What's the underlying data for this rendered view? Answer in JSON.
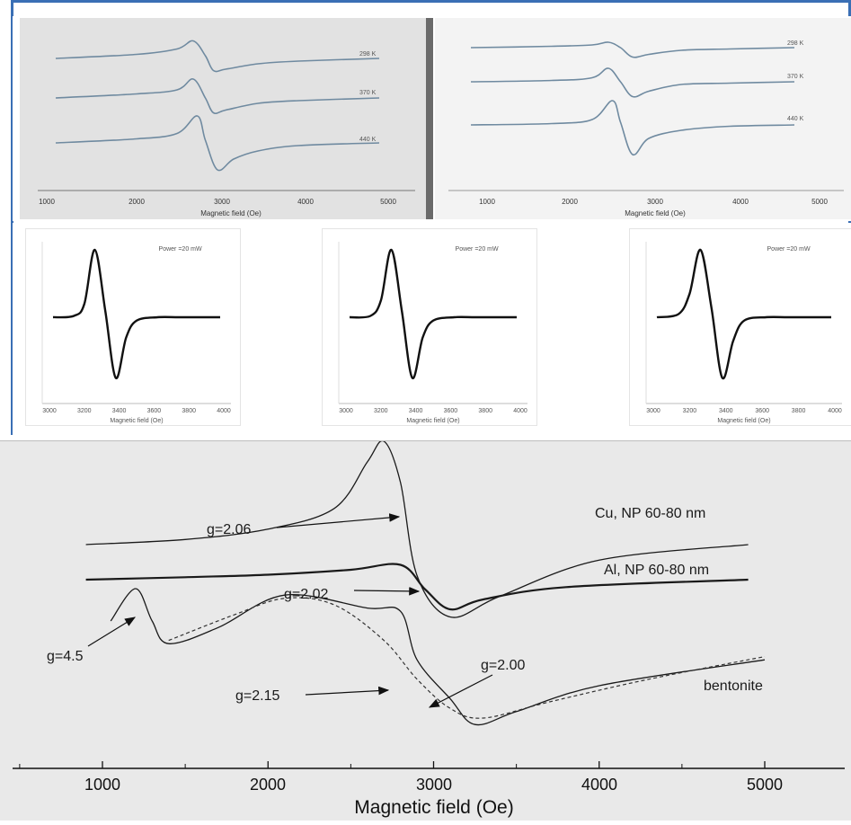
{
  "chart_data": [
    {
      "type": "line",
      "xlabel": "Magnetic field (Oe)",
      "xlim": [
        900,
        5100
      ],
      "x_ticks": [
        "1000",
        "2000",
        "3000",
        "4000",
        "5000"
      ],
      "series": [
        {
          "name": "298 K",
          "x": [
            1000,
            2000,
            2500,
            2700,
            2850,
            2950,
            3100,
            3500,
            4000,
            5000
          ],
          "y": [
            0.1,
            0.25,
            0.45,
            0.75,
            0.2,
            -0.35,
            -0.3,
            -0.1,
            0.0,
            0.1
          ]
        },
        {
          "name": "370 K",
          "x": [
            1000,
            2000,
            2500,
            2700,
            2850,
            2950,
            3100,
            3500,
            4000,
            5000
          ],
          "y": [
            0.1,
            0.25,
            0.4,
            0.8,
            0.1,
            -0.45,
            -0.35,
            -0.1,
            0.0,
            0.1
          ]
        },
        {
          "name": "440 K",
          "x": [
            1000,
            2000,
            2500,
            2750,
            2850,
            3000,
            3200,
            3500,
            4000,
            5000
          ],
          "y": [
            0.1,
            0.25,
            0.45,
            1.1,
            0.2,
            -0.9,
            -0.5,
            -0.2,
            0.0,
            0.1
          ]
        }
      ]
    },
    {
      "type": "line",
      "xlabel": "Magnetic field (Oe)",
      "xlim": [
        900,
        5100
      ],
      "x_ticks": [
        "1000",
        "2000",
        "3000",
        "4000",
        "5000"
      ],
      "series": [
        {
          "name": "298 K",
          "x": [
            1000,
            2000,
            2500,
            2700,
            2850,
            3000,
            3200,
            3600,
            4200,
            5000
          ],
          "y": [
            0.1,
            0.15,
            0.2,
            0.3,
            0.1,
            -0.25,
            -0.15,
            0.0,
            0.05,
            0.1
          ]
        },
        {
          "name": "370 K",
          "x": [
            1000,
            2000,
            2500,
            2700,
            2850,
            3000,
            3200,
            3600,
            4200,
            5000
          ],
          "y": [
            0.1,
            0.15,
            0.25,
            0.6,
            0.1,
            -0.45,
            -0.25,
            0.0,
            0.05,
            0.1
          ]
        },
        {
          "name": "440 K",
          "x": [
            1000,
            2000,
            2500,
            2750,
            2850,
            3000,
            3200,
            3600,
            4200,
            5000
          ],
          "y": [
            0.1,
            0.15,
            0.3,
            1.0,
            0.2,
            -1.0,
            -0.4,
            -0.1,
            0.05,
            0.1
          ]
        }
      ]
    },
    {
      "type": "line",
      "title": "Power =20 mW",
      "xlabel": "Magnetic field (Oe)",
      "series": [
        {
          "x": [
            3000,
            3100,
            3150,
            3200,
            3250,
            3300,
            3350,
            3400,
            3500,
            3600,
            3700,
            3800
          ],
          "y": [
            0.0,
            0.02,
            0.2,
            1.0,
            0.1,
            -0.9,
            -0.3,
            -0.05,
            0.0,
            0.0,
            0.0,
            0.0
          ]
        }
      ]
    },
    {
      "type": "line",
      "title": "Power =20 mW",
      "xlabel": "Magnetic field (Oe)",
      "series": [
        {
          "x": [
            3000,
            3100,
            3150,
            3200,
            3250,
            3300,
            3350,
            3400,
            3500,
            3600,
            3700,
            3800
          ],
          "y": [
            0.0,
            0.02,
            0.25,
            1.0,
            0.1,
            -0.9,
            -0.3,
            -0.05,
            0.0,
            0.0,
            0.0,
            0.0
          ]
        }
      ]
    },
    {
      "type": "line",
      "title": "Power =20 mW",
      "xlabel": "Magnetic field (Oe)",
      "series": [
        {
          "x": [
            3000,
            3100,
            3150,
            3200,
            3250,
            3300,
            3350,
            3400,
            3500,
            3600,
            3700,
            3800
          ],
          "y": [
            0.0,
            0.05,
            0.35,
            1.0,
            0.15,
            -0.9,
            -0.35,
            -0.05,
            0.0,
            0.0,
            0.0,
            0.0
          ]
        }
      ]
    },
    {
      "type": "line",
      "xlabel": "Magnetic field (Oe)",
      "xlim": [
        400,
        5400
      ],
      "x_ticks": [
        "1000",
        "2000",
        "3000",
        "4000",
        "5000"
      ],
      "series": [
        {
          "name": "Cu, NP 60-80 nm",
          "x": [
            900,
            1500,
            2000,
            2400,
            2600,
            2700,
            2800,
            2900,
            3100,
            3400,
            4000,
            4900
          ],
          "y": [
            0.0,
            0.05,
            0.15,
            0.35,
            0.8,
            1.0,
            0.6,
            -0.3,
            -0.7,
            -0.5,
            -0.15,
            0.0
          ]
        },
        {
          "name": "Al, NP 60-80 nm",
          "x": [
            900,
            1500,
            2000,
            2500,
            2800,
            2950,
            3100,
            3300,
            3800,
            4900
          ],
          "y": [
            0.0,
            0.05,
            0.1,
            0.2,
            0.3,
            -0.2,
            -0.6,
            -0.4,
            -0.15,
            0.0
          ]
        },
        {
          "name": "bentonite",
          "x": [
            1050,
            1200,
            1300,
            1400,
            1700,
            2100,
            2600,
            2800,
            2900,
            3100,
            3250,
            3500,
            4000,
            5000
          ],
          "y": [
            0.0,
            0.5,
            0.0,
            -0.35,
            -0.1,
            0.4,
            0.2,
            0.15,
            -0.6,
            -1.2,
            -1.6,
            -1.4,
            -1.0,
            -0.6
          ]
        }
      ],
      "annotations": [
        "g=2.06",
        "g=2.02",
        "g=4.5",
        "g=2.00",
        "g=2.15"
      ]
    }
  ],
  "top_labels": {
    "a": [
      "298 K",
      "370 K",
      "440 K"
    ],
    "b": [
      "298 K",
      "370 K",
      "440 K"
    ]
  },
  "mini_labels": {
    "power": "Power =20 mW",
    "xlabel": "Magnetic field (Oe)",
    "ticks": [
      "3000",
      "3200",
      "3400",
      "3600",
      "3800",
      "4000"
    ]
  },
  "bottom": {
    "labels": {
      "cu": "Cu, NP 60-80 nm",
      "al": "Al, NP 60-80 nm",
      "bent": "bentonite",
      "g206": "g=2.06",
      "g202": "g=2.02",
      "g45": "g=4.5",
      "g200": "g=2.00",
      "g215": "g=2.15"
    },
    "xlabel": "Magnetic field (Oe)",
    "ticks": [
      "1000",
      "2000",
      "3000",
      "4000",
      "5000"
    ]
  },
  "colors": {
    "frame": "#3a6fb5",
    "trace_top": "#6f8aa0",
    "trace_mini": "#111111",
    "trace_bottom": "#1a1a1a"
  }
}
